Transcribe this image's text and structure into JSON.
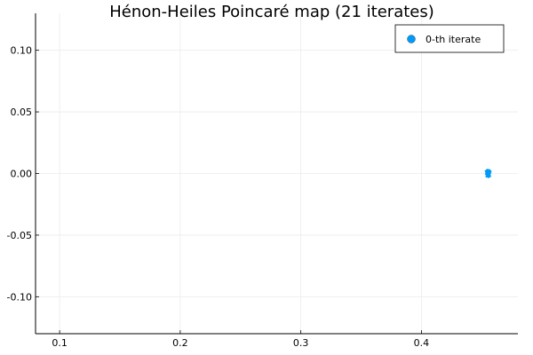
{
  "chart_data": {
    "type": "scatter",
    "title": "Hénon-Heiles Poincaré map (21 iterates)",
    "xlabel": "",
    "ylabel": "",
    "xlim": [
      0.08,
      0.48
    ],
    "ylim": [
      -0.13,
      0.13
    ],
    "xticks": [
      0.1,
      0.2,
      0.3,
      0.4
    ],
    "xtick_labels": [
      "0.1",
      "0.2",
      "0.3",
      "0.4"
    ],
    "yticks": [
      -0.1,
      -0.05,
      0.0,
      0.05,
      0.1
    ],
    "ytick_labels": [
      "-0.10",
      "-0.05",
      "0.00",
      "0.05",
      "0.10"
    ],
    "grid": true,
    "legend_position": "top-right",
    "series": [
      {
        "name": "0-th iterate",
        "color": "#009AF9",
        "x": [
          0.4552,
          0.4538,
          0.4566,
          0.4547,
          0.456,
          0.4541,
          0.4571,
          0.4555,
          0.4535,
          0.4563,
          0.4549,
          0.4544,
          0.4569,
          0.4557,
          0.4539,
          0.4552,
          0.4574,
          0.4533,
          0.4561,
          0.4546,
          0.4558,
          0.4543,
          0.4565,
          0.455,
          0.4537,
          0.4568,
          0.4554,
          0.4542,
          0.4559,
          0.4548
        ],
        "y": [
          0.0,
          0.0012,
          -0.001,
          -0.002,
          0.0022,
          0.0026,
          0.0004,
          -0.003,
          -0.0006,
          0.0015,
          0.0031,
          -0.0018,
          -0.0024,
          0.0008,
          -0.0025,
          -0.0012,
          0.0017,
          0.002,
          -0.0005,
          0.0004,
          -0.0016,
          -0.0008,
          0.0028,
          0.0018,
          0.0006,
          -0.0014,
          0.001,
          0.0014,
          -0.0026,
          -0.0004
        ]
      }
    ]
  }
}
